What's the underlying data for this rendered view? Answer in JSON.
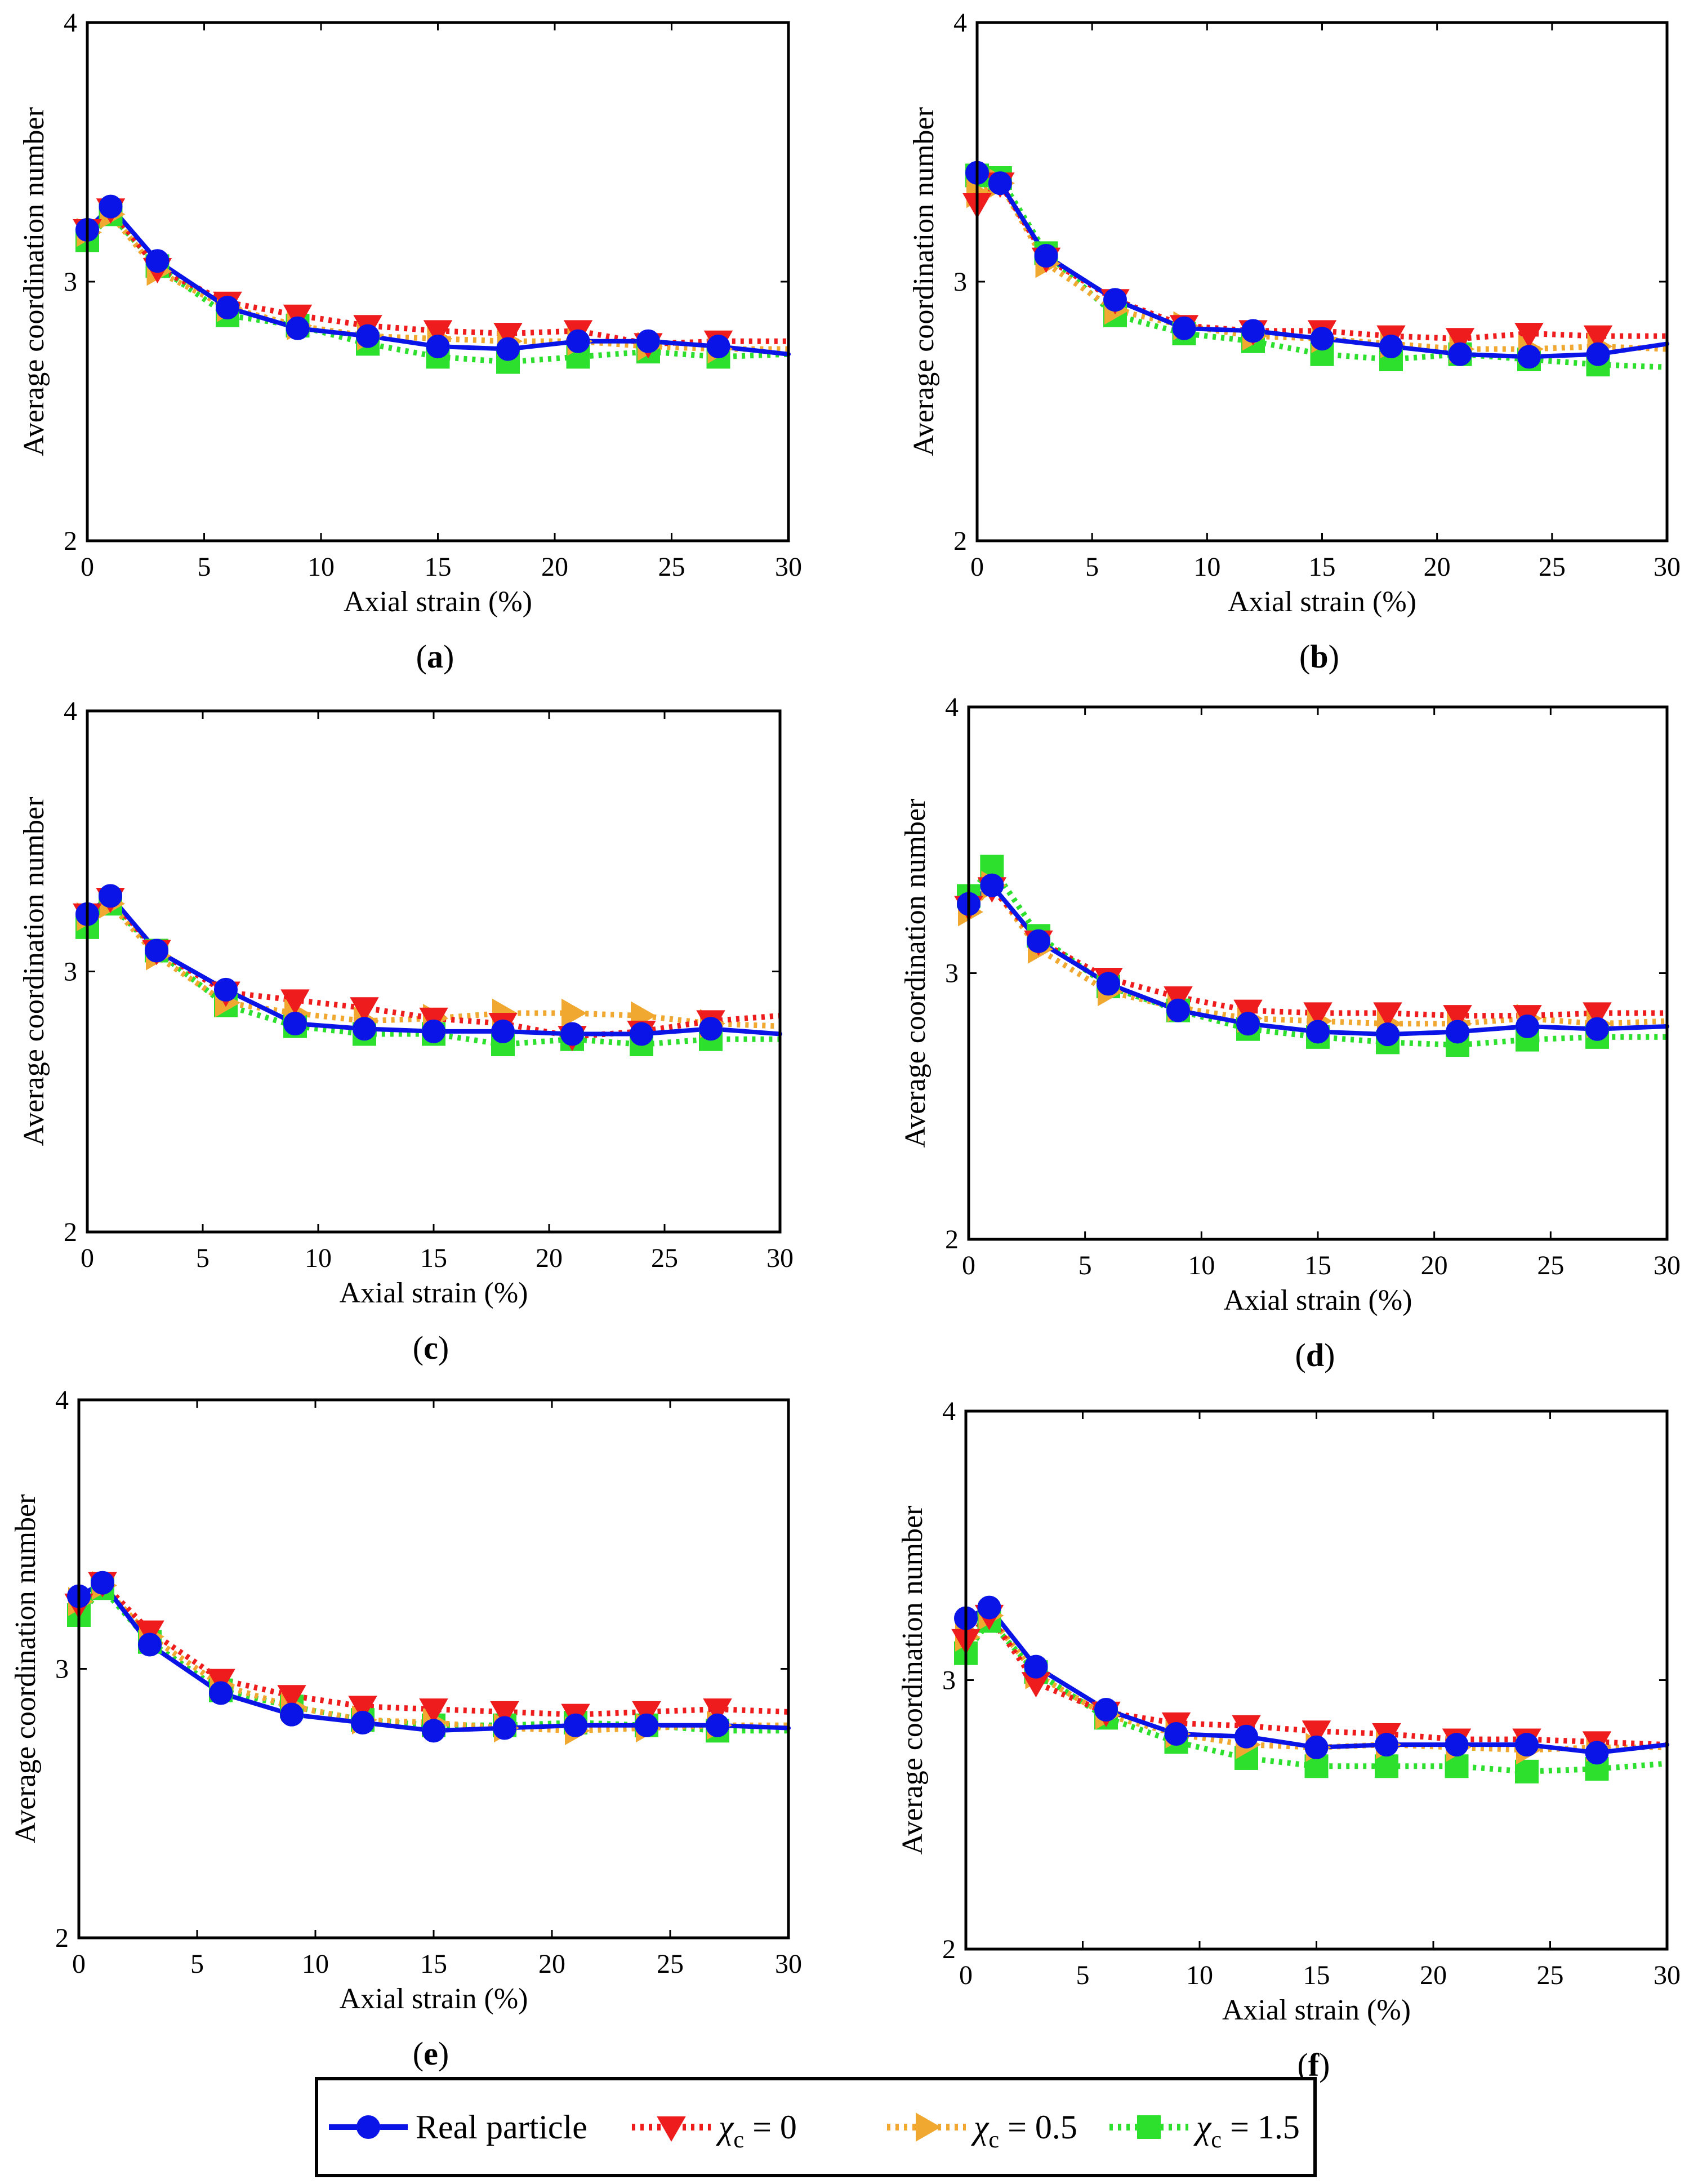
{
  "legend": {
    "placement": "bottom-center",
    "entries": [
      {
        "label": "Real particle",
        "color": "#0a14e6",
        "marker": "circle",
        "dash": "solid"
      },
      {
        "label": "χ",
        "sub": "c",
        "suffix": " = 0",
        "color": "#ee1c1c",
        "marker": "triangle-down",
        "dash": "dotted"
      },
      {
        "label": "χ",
        "sub": "c",
        "suffix": " = 0.5",
        "color": "#f0a830",
        "marker": "triangle-right",
        "dash": "dotted"
      },
      {
        "label": "χ",
        "sub": "c",
        "suffix": " = 1.5",
        "color": "#2ee02e",
        "marker": "square",
        "dash": "dotted"
      }
    ]
  },
  "chart_data": [
    {
      "panel": "(a)",
      "panel_letter": "a",
      "type": "line",
      "xlabel": "Axial strain (%)",
      "ylabel": "Average coordination number",
      "xlim": [
        0,
        30
      ],
      "ylim": [
        2,
        4
      ],
      "xticks": [
        0,
        5,
        10,
        15,
        20,
        25,
        30
      ],
      "yticks": [
        2,
        3,
        4
      ],
      "x": [
        0,
        1,
        3,
        6,
        9,
        12,
        15,
        18,
        21,
        24,
        27,
        30
      ],
      "series": [
        {
          "name": "Real particle",
          "values": [
            3.2,
            3.29,
            3.08,
            2.9,
            2.82,
            2.79,
            2.75,
            2.74,
            2.77,
            2.77,
            2.75,
            2.72
          ]
        },
        {
          "name": "χc = 0",
          "values": [
            3.2,
            3.28,
            3.05,
            2.92,
            2.87,
            2.83,
            2.81,
            2.8,
            2.81,
            2.76,
            2.77,
            2.77
          ]
        },
        {
          "name": "χc = 0.5",
          "values": [
            3.19,
            3.26,
            3.04,
            2.9,
            2.83,
            2.79,
            2.78,
            2.77,
            2.77,
            2.75,
            2.74,
            2.74
          ]
        },
        {
          "name": "χc = 1.5",
          "values": [
            3.16,
            3.26,
            3.06,
            2.87,
            2.83,
            2.76,
            2.71,
            2.69,
            2.71,
            2.73,
            2.71,
            2.72
          ]
        }
      ]
    },
    {
      "panel": "(b)",
      "panel_letter": "b",
      "type": "line",
      "xlabel": "Axial strain (%)",
      "ylabel": "Average coordination number",
      "xlim": [
        0,
        30
      ],
      "ylim": [
        2,
        4
      ],
      "xticks": [
        0,
        5,
        10,
        15,
        20,
        25,
        30
      ],
      "yticks": [
        2,
        3,
        4
      ],
      "x": [
        0,
        1,
        3,
        6,
        9,
        12,
        15,
        18,
        21,
        24,
        27,
        30
      ],
      "series": [
        {
          "name": "Real particle",
          "values": [
            3.42,
            3.38,
            3.1,
            2.93,
            2.82,
            2.81,
            2.78,
            2.75,
            2.72,
            2.71,
            2.72,
            2.76
          ]
        },
        {
          "name": "χc = 0",
          "values": [
            3.3,
            3.38,
            3.09,
            2.93,
            2.83,
            2.81,
            2.81,
            2.79,
            2.78,
            2.8,
            2.79,
            2.79
          ]
        },
        {
          "name": "χc = 0.5",
          "values": [
            3.34,
            3.38,
            3.07,
            2.89,
            2.83,
            2.79,
            2.78,
            2.76,
            2.74,
            2.74,
            2.75,
            2.74
          ]
        },
        {
          "name": "χc = 1.5",
          "values": [
            3.41,
            3.4,
            3.11,
            2.87,
            2.8,
            2.77,
            2.72,
            2.7,
            2.72,
            2.7,
            2.68,
            2.67
          ]
        }
      ]
    },
    {
      "panel": "(c)",
      "panel_letter": "c",
      "type": "line",
      "xlabel": "Axial strain (%)",
      "ylabel": "Average coordination number",
      "xlim": [
        0,
        30
      ],
      "ylim": [
        2,
        4
      ],
      "xticks": [
        0,
        5,
        10,
        15,
        20,
        25,
        30
      ],
      "yticks": [
        2,
        3,
        4
      ],
      "x": [
        0,
        1,
        3,
        6,
        9,
        12,
        15,
        18,
        21,
        24,
        27,
        30
      ],
      "series": [
        {
          "name": "Real particle",
          "values": [
            3.22,
            3.29,
            3.08,
            2.93,
            2.8,
            2.78,
            2.77,
            2.77,
            2.76,
            2.76,
            2.78,
            2.76
          ]
        },
        {
          "name": "χc = 0",
          "values": [
            3.22,
            3.28,
            3.08,
            2.92,
            2.89,
            2.86,
            2.82,
            2.8,
            2.75,
            2.77,
            2.81,
            2.83
          ]
        },
        {
          "name": "χc = 0.5",
          "values": [
            3.21,
            3.26,
            3.06,
            2.88,
            2.84,
            2.81,
            2.82,
            2.84,
            2.84,
            2.83,
            2.8,
            2.79
          ]
        },
        {
          "name": "χc = 1.5",
          "values": [
            3.17,
            3.26,
            3.08,
            2.87,
            2.79,
            2.76,
            2.76,
            2.72,
            2.74,
            2.72,
            2.74,
            2.74
          ]
        }
      ]
    },
    {
      "panel": "(d)",
      "panel_letter": "d",
      "type": "line",
      "xlabel": "Axial strain (%)",
      "ylabel": "Average coordination number",
      "xlim": [
        0,
        30
      ],
      "ylim": [
        2,
        4
      ],
      "xticks": [
        0,
        5,
        10,
        15,
        20,
        25,
        30
      ],
      "yticks": [
        2,
        3,
        4
      ],
      "x": [
        0,
        1,
        3,
        6,
        9,
        12,
        15,
        18,
        21,
        24,
        27,
        30
      ],
      "series": [
        {
          "name": "Real particle",
          "values": [
            3.26,
            3.33,
            3.12,
            2.96,
            2.86,
            2.81,
            2.78,
            2.77,
            2.78,
            2.8,
            2.79,
            2.8
          ]
        },
        {
          "name": "χc = 0",
          "values": [
            3.25,
            3.32,
            3.12,
            2.98,
            2.91,
            2.86,
            2.85,
            2.85,
            2.84,
            2.84,
            2.85,
            2.85
          ]
        },
        {
          "name": "χc = 0.5",
          "values": [
            3.23,
            3.33,
            3.09,
            2.93,
            2.87,
            2.83,
            2.82,
            2.81,
            2.81,
            2.83,
            2.81,
            2.82
          ]
        },
        {
          "name": "χc = 1.5",
          "values": [
            3.29,
            3.4,
            3.14,
            2.95,
            2.86,
            2.79,
            2.76,
            2.74,
            2.73,
            2.75,
            2.76,
            2.76
          ]
        }
      ]
    },
    {
      "panel": "(e)",
      "panel_letter": "e",
      "type": "line",
      "xlabel": "Axial strain (%)",
      "ylabel": "Average coordination number",
      "xlim": [
        0,
        30
      ],
      "ylim": [
        2,
        4
      ],
      "xticks": [
        0,
        5,
        10,
        15,
        20,
        25,
        30
      ],
      "yticks": [
        2,
        3,
        4
      ],
      "x": [
        0,
        1,
        3,
        6,
        9,
        12,
        15,
        18,
        21,
        24,
        27,
        30
      ],
      "series": [
        {
          "name": "Real particle",
          "values": [
            3.27,
            3.32,
            3.09,
            2.91,
            2.83,
            2.8,
            2.77,
            2.78,
            2.79,
            2.79,
            2.79,
            2.78
          ]
        },
        {
          "name": "χc = 0",
          "values": [
            3.24,
            3.32,
            3.14,
            2.96,
            2.9,
            2.86,
            2.85,
            2.84,
            2.83,
            2.84,
            2.85,
            2.84
          ]
        },
        {
          "name": "χc = 0.5",
          "values": [
            3.25,
            3.31,
            3.12,
            2.94,
            2.86,
            2.81,
            2.8,
            2.78,
            2.77,
            2.78,
            2.79,
            2.79
          ]
        },
        {
          "name": "χc = 1.5",
          "values": [
            3.2,
            3.3,
            3.1,
            2.92,
            2.86,
            2.81,
            2.79,
            2.79,
            2.8,
            2.79,
            2.77,
            2.77
          ]
        }
      ]
    },
    {
      "panel": "(f)",
      "panel_letter": "f",
      "type": "line",
      "xlabel": "Axial strain (%)",
      "ylabel": "Average coordination number",
      "xlim": [
        0,
        30
      ],
      "ylim": [
        2,
        4
      ],
      "xticks": [
        0,
        5,
        10,
        15,
        20,
        25,
        30
      ],
      "yticks": [
        2,
        3,
        4
      ],
      "x": [
        0,
        1,
        3,
        6,
        9,
        12,
        15,
        18,
        21,
        24,
        27,
        30
      ],
      "series": [
        {
          "name": "Real particle",
          "values": [
            3.23,
            3.27,
            3.05,
            2.89,
            2.8,
            2.79,
            2.75,
            2.76,
            2.76,
            2.76,
            2.73,
            2.76
          ]
        },
        {
          "name": "χc = 0",
          "values": [
            3.15,
            3.24,
            2.99,
            2.88,
            2.84,
            2.83,
            2.81,
            2.8,
            2.78,
            2.78,
            2.77,
            2.76
          ]
        },
        {
          "name": "χc = 0.5",
          "values": [
            3.16,
            3.24,
            3.02,
            2.87,
            2.8,
            2.76,
            2.75,
            2.76,
            2.75,
            2.74,
            2.75,
            2.75
          ]
        },
        {
          "name": "χc = 1.5",
          "values": [
            3.1,
            3.22,
            3.03,
            2.86,
            2.77,
            2.71,
            2.68,
            2.68,
            2.68,
            2.66,
            2.67,
            2.69
          ]
        }
      ]
    }
  ]
}
